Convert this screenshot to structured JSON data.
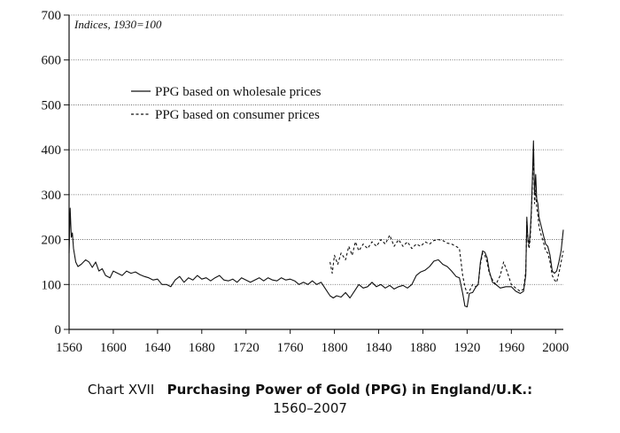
{
  "chart_data": {
    "type": "line",
    "note": "Indices, 1930=100",
    "xlim": [
      1560,
      2007
    ],
    "ylim": [
      0,
      700
    ],
    "x_ticks": [
      1560,
      1600,
      1640,
      1680,
      1720,
      1760,
      1800,
      1840,
      1880,
      1920,
      1960,
      2000
    ],
    "y_ticks": [
      0,
      100,
      200,
      300,
      400,
      500,
      600,
      700
    ],
    "grid": "horizontal",
    "legend_position": "top-left",
    "series": [
      {
        "name": "PPG based on wholesale prices",
        "style": "solid",
        "color": "#111111",
        "points": [
          [
            1560,
            170
          ],
          [
            1561,
            270
          ],
          [
            1562,
            205
          ],
          [
            1563,
            215
          ],
          [
            1564,
            180
          ],
          [
            1566,
            150
          ],
          [
            1568,
            140
          ],
          [
            1571,
            145
          ],
          [
            1575,
            155
          ],
          [
            1578,
            150
          ],
          [
            1581,
            138
          ],
          [
            1584,
            150
          ],
          [
            1587,
            130
          ],
          [
            1590,
            135
          ],
          [
            1593,
            120
          ],
          [
            1597,
            115
          ],
          [
            1600,
            130
          ],
          [
            1604,
            125
          ],
          [
            1608,
            120
          ],
          [
            1612,
            130
          ],
          [
            1616,
            125
          ],
          [
            1620,
            128
          ],
          [
            1624,
            122
          ],
          [
            1628,
            118
          ],
          [
            1632,
            115
          ],
          [
            1636,
            110
          ],
          [
            1640,
            112
          ],
          [
            1644,
            100
          ],
          [
            1648,
            100
          ],
          [
            1652,
            95
          ],
          [
            1656,
            110
          ],
          [
            1660,
            118
          ],
          [
            1664,
            105
          ],
          [
            1668,
            115
          ],
          [
            1672,
            110
          ],
          [
            1676,
            120
          ],
          [
            1680,
            112
          ],
          [
            1684,
            115
          ],
          [
            1688,
            108
          ],
          [
            1692,
            115
          ],
          [
            1696,
            120
          ],
          [
            1700,
            110
          ],
          [
            1704,
            108
          ],
          [
            1708,
            112
          ],
          [
            1712,
            105
          ],
          [
            1716,
            115
          ],
          [
            1720,
            110
          ],
          [
            1724,
            105
          ],
          [
            1728,
            110
          ],
          [
            1732,
            115
          ],
          [
            1736,
            108
          ],
          [
            1740,
            115
          ],
          [
            1744,
            110
          ],
          [
            1748,
            108
          ],
          [
            1752,
            115
          ],
          [
            1756,
            110
          ],
          [
            1760,
            112
          ],
          [
            1764,
            108
          ],
          [
            1768,
            100
          ],
          [
            1772,
            105
          ],
          [
            1776,
            100
          ],
          [
            1780,
            108
          ],
          [
            1784,
            100
          ],
          [
            1788,
            105
          ],
          [
            1792,
            90
          ],
          [
            1796,
            75
          ],
          [
            1799,
            70
          ],
          [
            1802,
            75
          ],
          [
            1806,
            72
          ],
          [
            1810,
            82
          ],
          [
            1814,
            70
          ],
          [
            1818,
            85
          ],
          [
            1822,
            100
          ],
          [
            1826,
            92
          ],
          [
            1830,
            95
          ],
          [
            1834,
            105
          ],
          [
            1838,
            95
          ],
          [
            1842,
            100
          ],
          [
            1846,
            92
          ],
          [
            1850,
            98
          ],
          [
            1854,
            90
          ],
          [
            1858,
            95
          ],
          [
            1862,
            98
          ],
          [
            1866,
            92
          ],
          [
            1870,
            100
          ],
          [
            1874,
            120
          ],
          [
            1878,
            128
          ],
          [
            1882,
            132
          ],
          [
            1886,
            140
          ],
          [
            1890,
            152
          ],
          [
            1894,
            155
          ],
          [
            1898,
            145
          ],
          [
            1902,
            140
          ],
          [
            1906,
            130
          ],
          [
            1910,
            118
          ],
          [
            1913,
            115
          ],
          [
            1916,
            80
          ],
          [
            1918,
            52
          ],
          [
            1920,
            50
          ],
          [
            1922,
            80
          ],
          [
            1925,
            82
          ],
          [
            1928,
            95
          ],
          [
            1930,
            100
          ],
          [
            1932,
            150
          ],
          [
            1934,
            175
          ],
          [
            1936,
            172
          ],
          [
            1938,
            160
          ],
          [
            1940,
            130
          ],
          [
            1943,
            105
          ],
          [
            1946,
            100
          ],
          [
            1950,
            92
          ],
          [
            1955,
            95
          ],
          [
            1960,
            95
          ],
          [
            1964,
            85
          ],
          [
            1968,
            80
          ],
          [
            1971,
            85
          ],
          [
            1973,
            120
          ],
          [
            1974,
            250
          ],
          [
            1975,
            200
          ],
          [
            1976,
            190
          ],
          [
            1977,
            215
          ],
          [
            1978,
            260
          ],
          [
            1979,
            330
          ],
          [
            1980,
            420
          ],
          [
            1981,
            300
          ],
          [
            1982,
            345
          ],
          [
            1983,
            290
          ],
          [
            1984,
            280
          ],
          [
            1985,
            250
          ],
          [
            1987,
            230
          ],
          [
            1989,
            210
          ],
          [
            1991,
            190
          ],
          [
            1993,
            185
          ],
          [
            1995,
            165
          ],
          [
            1997,
            130
          ],
          [
            1999,
            125
          ],
          [
            2001,
            130
          ],
          [
            2003,
            150
          ],
          [
            2005,
            175
          ],
          [
            2007,
            222
          ]
        ]
      },
      {
        "name": "PPG based on consumer prices",
        "style": "dashed",
        "color": "#111111",
        "points": [
          [
            1796,
            150
          ],
          [
            1798,
            125
          ],
          [
            1800,
            165
          ],
          [
            1803,
            145
          ],
          [
            1806,
            170
          ],
          [
            1810,
            155
          ],
          [
            1813,
            185
          ],
          [
            1816,
            165
          ],
          [
            1819,
            195
          ],
          [
            1822,
            175
          ],
          [
            1826,
            190
          ],
          [
            1830,
            180
          ],
          [
            1834,
            195
          ],
          [
            1838,
            185
          ],
          [
            1842,
            200
          ],
          [
            1846,
            190
          ],
          [
            1850,
            210
          ],
          [
            1854,
            185
          ],
          [
            1858,
            200
          ],
          [
            1862,
            185
          ],
          [
            1866,
            195
          ],
          [
            1870,
            180
          ],
          [
            1874,
            190
          ],
          [
            1878,
            185
          ],
          [
            1882,
            195
          ],
          [
            1886,
            190
          ],
          [
            1890,
            198
          ],
          [
            1894,
            200
          ],
          [
            1898,
            198
          ],
          [
            1902,
            192
          ],
          [
            1906,
            190
          ],
          [
            1910,
            185
          ],
          [
            1913,
            180
          ],
          [
            1916,
            120
          ],
          [
            1918,
            95
          ],
          [
            1920,
            80
          ],
          [
            1922,
            85
          ],
          [
            1925,
            100
          ],
          [
            1928,
            95
          ],
          [
            1930,
            100
          ],
          [
            1932,
            145
          ],
          [
            1934,
            170
          ],
          [
            1936,
            165
          ],
          [
            1938,
            150
          ],
          [
            1940,
            125
          ],
          [
            1943,
            110
          ],
          [
            1946,
            100
          ],
          [
            1950,
            120
          ],
          [
            1953,
            150
          ],
          [
            1956,
            130
          ],
          [
            1960,
            100
          ],
          [
            1964,
            92
          ],
          [
            1968,
            85
          ],
          [
            1971,
            90
          ],
          [
            1973,
            130
          ],
          [
            1974,
            240
          ],
          [
            1975,
            195
          ],
          [
            1976,
            180
          ],
          [
            1977,
            200
          ],
          [
            1978,
            250
          ],
          [
            1979,
            320
          ],
          [
            1980,
            395
          ],
          [
            1981,
            280
          ],
          [
            1982,
            310
          ],
          [
            1983,
            270
          ],
          [
            1984,
            255
          ],
          [
            1985,
            230
          ],
          [
            1987,
            210
          ],
          [
            1989,
            195
          ],
          [
            1991,
            175
          ],
          [
            1993,
            170
          ],
          [
            1995,
            150
          ],
          [
            1997,
            120
          ],
          [
            1999,
            110
          ],
          [
            2001,
            105
          ],
          [
            2003,
            125
          ],
          [
            2005,
            150
          ],
          [
            2007,
            175
          ]
        ]
      }
    ]
  },
  "caption": {
    "label": "Chart XVII",
    "title": "Purchasing Power of Gold (PPG) in England/U.K.:",
    "period": "1560–2007"
  }
}
